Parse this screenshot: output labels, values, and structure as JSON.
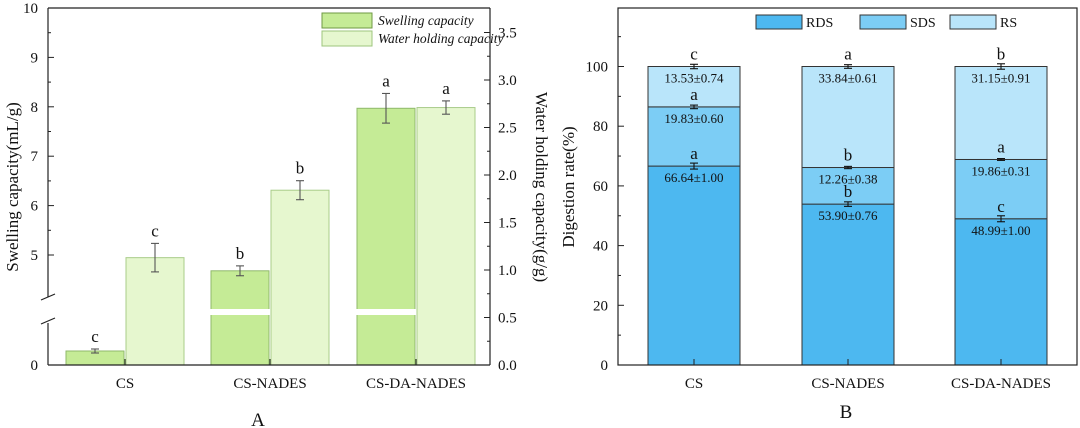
{
  "chart_data": [
    {
      "type": "bar",
      "panel_label": "A",
      "title": "",
      "categories": [
        "CS",
        "CS-NADES",
        "CS-DA-NADES"
      ],
      "xlabel": "",
      "ylabel": "Swelling capacity(mL/g)",
      "ylabel_right": "Water holding capacity(g/g)",
      "ylim_left": [
        0,
        10
      ],
      "ylim_right": [
        0,
        3.7
      ],
      "yticks_left": [
        "10",
        "9",
        "8",
        "7",
        "6",
        "5"
      ],
      "yticks_left_bottom": [
        "0"
      ],
      "yticks_right": [
        "3.5",
        "3.0",
        "2.5",
        "2.0",
        "1.5",
        "1.0",
        "0.5",
        "0.0"
      ],
      "axis_break": "left axis broken between 0 and 5",
      "legend": [
        "Swelling capacity",
        "Water holding capacity"
      ],
      "legend_position": "top-right",
      "series": [
        {
          "name": "Swelling capacity",
          "axis": "left",
          "color": "#c5eb96",
          "values": [
            0.28,
            4.68,
            7.97
          ],
          "errors": [
            0.04,
            0.1,
            0.3
          ],
          "letters": [
            "c",
            "b",
            "a"
          ]
        },
        {
          "name": "Water holding capacity",
          "axis": "right",
          "color": "#e6f7cf",
          "values": [
            1.13,
            1.84,
            2.71
          ],
          "errors": [
            0.15,
            0.1,
            0.07
          ],
          "letters": [
            "c",
            "b",
            "a"
          ]
        }
      ]
    },
    {
      "type": "bar",
      "stacked": true,
      "panel_label": "B",
      "title": "",
      "categories": [
        "CS",
        "CS-NADES",
        "CS-DA-NADES"
      ],
      "xlabel": "",
      "ylabel": "Digestion rate(%)",
      "ylim": [
        0,
        115
      ],
      "yticks": [
        "0",
        "20",
        "40",
        "60",
        "80",
        "100"
      ],
      "legend": [
        "RDS",
        "SDS",
        "RS"
      ],
      "legend_position": "top-center",
      "series": [
        {
          "name": "RDS",
          "color": "#4db8f0",
          "values": [
            66.64,
            53.9,
            48.99
          ],
          "labels": [
            "66.64±1.00",
            "53.90±0.76",
            "48.99±1.00"
          ],
          "letters": [
            "a",
            "b",
            "c"
          ],
          "errors": [
            1.0,
            0.76,
            1.0
          ]
        },
        {
          "name": "SDS",
          "color": "#7ccdf5",
          "values": [
            19.83,
            12.26,
            19.86
          ],
          "labels": [
            "19.83±0.60",
            "12.26±0.38",
            "19.86±0.31"
          ],
          "letters": [
            "a",
            "b",
            "a"
          ],
          "errors": [
            0.6,
            0.38,
            0.31
          ]
        },
        {
          "name": "RS",
          "color": "#b9e5fa",
          "values": [
            13.53,
            33.84,
            31.15
          ],
          "labels": [
            "13.53±0.74",
            "33.84±0.61",
            "31.15±0.91"
          ],
          "letters": [
            "c",
            "a",
            "b"
          ],
          "errors": [
            0.74,
            0.61,
            0.91
          ]
        }
      ]
    }
  ]
}
